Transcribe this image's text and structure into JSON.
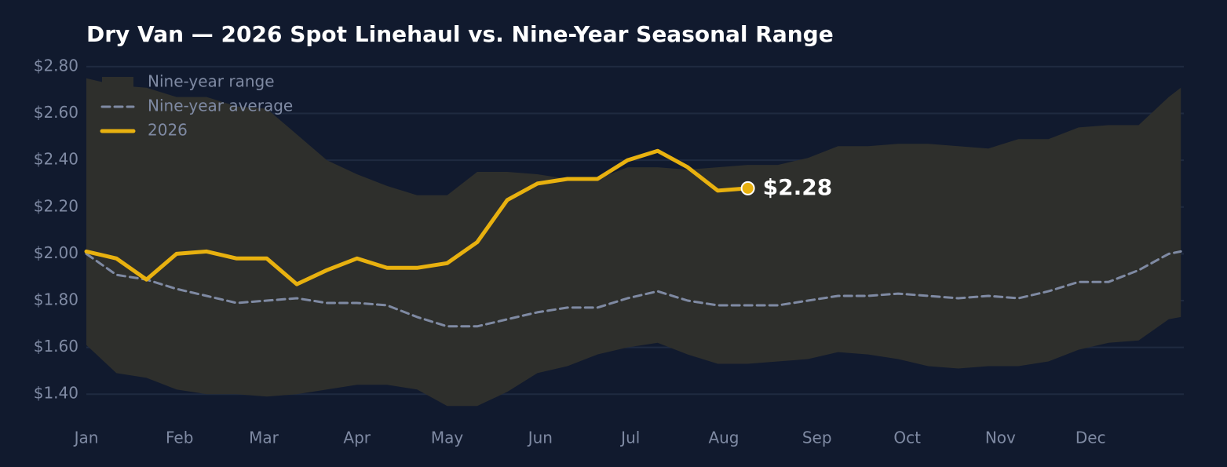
{
  "chart_data": {
    "type": "line",
    "title": "Dry Van — 2026 Spot Linehaul vs. Nine-Year Seasonal Range",
    "x": [
      0,
      10,
      20,
      30,
      40,
      50,
      60,
      70,
      80,
      90,
      100,
      110,
      120,
      130,
      140,
      150,
      160,
      170,
      180,
      190,
      200,
      210,
      220,
      230,
      240,
      250,
      260,
      270,
      280,
      290,
      300,
      310,
      320,
      330,
      340,
      350,
      360,
      364
    ],
    "xlim": [
      0,
      365
    ],
    "xticks": [
      {
        "value": 0,
        "label": "Jan"
      },
      {
        "value": 31,
        "label": "Feb"
      },
      {
        "value": 59,
        "label": "Mar"
      },
      {
        "value": 90,
        "label": "Apr"
      },
      {
        "value": 120,
        "label": "May"
      },
      {
        "value": 151,
        "label": "Jun"
      },
      {
        "value": 181,
        "label": "Jul"
      },
      {
        "value": 212,
        "label": "Aug"
      },
      {
        "value": 243,
        "label": "Sep"
      },
      {
        "value": 273,
        "label": "Oct"
      },
      {
        "value": 304,
        "label": "Nov"
      },
      {
        "value": 334,
        "label": "Dec"
      }
    ],
    "ylim": [
      1.27,
      2.86
    ],
    "yticks": [
      {
        "value": 1.4,
        "label": "$1.40"
      },
      {
        "value": 1.6,
        "label": "$1.60"
      },
      {
        "value": 1.8,
        "label": "$1.80"
      },
      {
        "value": 2.0,
        "label": "$2.00"
      },
      {
        "value": 2.2,
        "label": "$2.20"
      },
      {
        "value": 2.4,
        "label": "$2.40"
      },
      {
        "value": 2.6,
        "label": "$2.60"
      },
      {
        "value": 2.8,
        "label": "$2.80"
      }
    ],
    "grid": true,
    "legend": "upper left",
    "series": [
      {
        "name": "Nine-year range",
        "kind": "band",
        "color": "#2e2f2c",
        "upper": [
          2.75,
          2.72,
          2.71,
          2.67,
          2.67,
          2.63,
          2.62,
          2.51,
          2.4,
          2.34,
          2.29,
          2.25,
          2.25,
          2.35,
          2.35,
          2.34,
          2.32,
          2.32,
          2.37,
          2.37,
          2.36,
          2.37,
          2.38,
          2.38,
          2.41,
          2.46,
          2.46,
          2.47,
          2.47,
          2.46,
          2.45,
          2.49,
          2.49,
          2.54,
          2.55,
          2.55,
          2.67,
          2.71
        ],
        "lower": [
          1.61,
          1.49,
          1.47,
          1.42,
          1.4,
          1.4,
          1.39,
          1.4,
          1.42,
          1.44,
          1.44,
          1.42,
          1.35,
          1.35,
          1.41,
          1.49,
          1.52,
          1.57,
          1.6,
          1.62,
          1.57,
          1.53,
          1.53,
          1.54,
          1.55,
          1.58,
          1.57,
          1.55,
          1.52,
          1.51,
          1.52,
          1.52,
          1.54,
          1.59,
          1.62,
          1.63,
          1.72,
          1.73
        ]
      },
      {
        "name": "Nine-year average",
        "kind": "dashed",
        "color": "#7f8aa3",
        "values": [
          2.0,
          1.91,
          1.89,
          1.85,
          1.82,
          1.79,
          1.8,
          1.81,
          1.79,
          1.79,
          1.78,
          1.73,
          1.69,
          1.69,
          1.72,
          1.75,
          1.77,
          1.77,
          1.81,
          1.84,
          1.8,
          1.78,
          1.78,
          1.78,
          1.8,
          1.82,
          1.82,
          1.83,
          1.82,
          1.81,
          1.82,
          1.81,
          1.84,
          1.88,
          1.88,
          1.93,
          2.0,
          2.01
        ]
      },
      {
        "name": "2026",
        "kind": "solid",
        "color": "#e8b10f",
        "values": [
          2.01,
          1.98,
          1.89,
          2.0,
          2.01,
          1.98,
          1.98,
          1.87,
          1.93,
          1.98,
          1.94,
          1.94,
          1.96,
          2.05,
          2.23,
          2.3,
          2.32,
          2.32,
          2.4,
          2.44,
          2.37,
          2.27,
          2.28,
          null,
          null,
          null,
          null,
          null,
          null,
          null,
          null,
          null,
          null,
          null,
          null,
          null,
          null,
          null
        ],
        "value_labels": [
          null,
          null,
          null,
          null,
          null,
          null,
          null,
          null,
          null,
          null,
          null,
          null,
          null,
          null,
          null,
          null,
          null,
          null,
          null,
          null,
          null,
          null,
          "$2.28",
          null,
          null,
          null,
          null,
          null,
          null,
          null,
          null,
          null,
          null,
          null,
          null,
          null,
          null,
          null
        ]
      }
    ]
  }
}
